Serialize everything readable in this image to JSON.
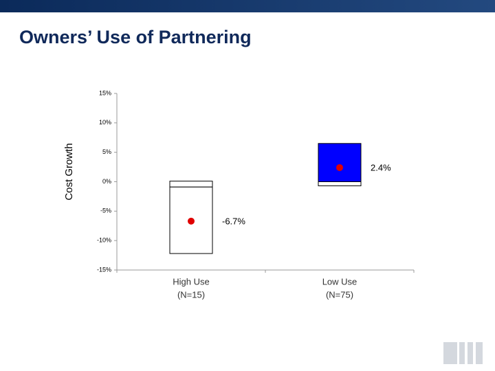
{
  "chart_data": {
    "type": "box",
    "title": "Owners’ Use of Partnering",
    "y_label": "Cost Growth",
    "categories": [
      [
        "High Use",
        "(N=15)"
      ],
      [
        "Low Use",
        "(N=75)"
      ]
    ],
    "high": [
      0.1,
      6.5
    ],
    "mid": [
      -0.9,
      0
    ],
    "low": [
      -12.2,
      -0.7
    ],
    "mean": [
      -6.7,
      2.4
    ],
    "value_labels": [
      "-6.7%",
      "2.4%"
    ],
    "upper_colors": [
      "#ffffff",
      "#0000ff"
    ],
    "lower_color": "#ffffff",
    "mean_color": "#e00000",
    "ylim": [
      -15,
      15
    ],
    "yticks": [
      {
        "value": -15,
        "label": "-15%"
      },
      {
        "value": -10,
        "label": "-10%"
      },
      {
        "value": -5,
        "label": "-5%"
      },
      {
        "value": 0,
        "label": "0%"
      },
      {
        "value": 5,
        "label": "5%"
      },
      {
        "value": 10,
        "label": "10%"
      },
      {
        "value": 15,
        "label": "15%"
      }
    ]
  }
}
